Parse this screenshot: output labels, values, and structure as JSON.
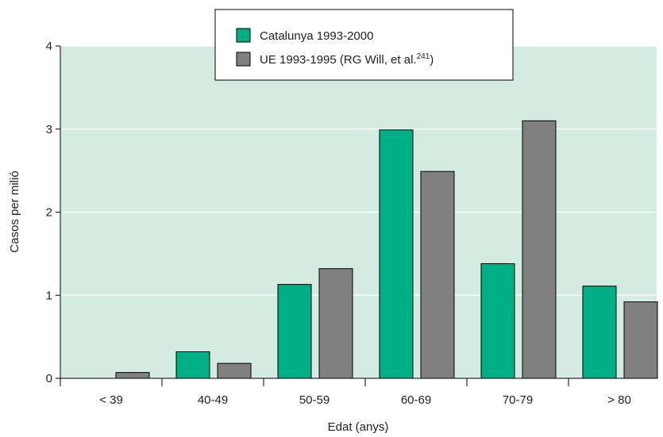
{
  "chart_data": {
    "type": "bar",
    "categories": [
      "< 39",
      "40-49",
      "50-59",
      "60-69",
      "70-79",
      "> 80"
    ],
    "series": [
      {
        "name": "Catalunya 1993-2000",
        "color": "#00b084",
        "values": [
          0,
          0.32,
          1.13,
          2.99,
          1.38,
          1.11
        ]
      },
      {
        "name": "UE 1993-1995 (RG Will, et al.",
        "name_sup": "241",
        "name_suffix": ")",
        "color": "#808080",
        "values": [
          0.07,
          0.18,
          1.32,
          2.49,
          3.1,
          0.92
        ]
      }
    ],
    "xlabel": "Edat (anys)",
    "ylabel": "Casos per milió",
    "ylim": [
      0,
      4
    ],
    "yticks": [
      "0",
      "1",
      "2",
      "3",
      "4"
    ],
    "grid": true,
    "legend_position": "top-center",
    "plot_background": "#d4ebe1"
  }
}
